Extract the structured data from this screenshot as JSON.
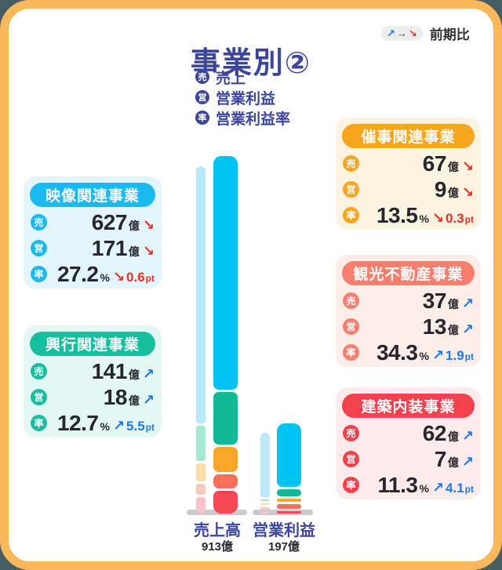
{
  "page": {
    "title": "事業別②",
    "outside_color": "#445e63",
    "border_color": "#fbb75a"
  },
  "prev_legend": {
    "arrows": [
      {
        "glyph": "↗",
        "meaning": "increase",
        "color": "#1e78e8"
      },
      {
        "glyph": "→",
        "meaning": "flat",
        "color": "#3a3a46"
      },
      {
        "glyph": "↘",
        "meaning": "decrease",
        "color": "#ee2e24"
      }
    ],
    "label": "前期比"
  },
  "metric_legend": {
    "badge_color": "#3b459b",
    "items": [
      {
        "badge": "売",
        "label": "売上"
      },
      {
        "badge": "営",
        "label": "営業利益"
      },
      {
        "badge": "率",
        "label": "営業利益率"
      }
    ]
  },
  "icons": {
    "trend_up": "↗",
    "trend_down": "↘"
  },
  "trend_colors": {
    "up": "#1e78e8",
    "down": "#ee2e24"
  },
  "cards": [
    {
      "title": "映像関連事業",
      "accent": "#1ab9f0",
      "bg": "#e4f6fd",
      "rows": [
        {
          "badge": "売",
          "value": "627",
          "unit": "億",
          "trend": "down"
        },
        {
          "badge": "営",
          "value": "171",
          "unit": "億",
          "trend": "down"
        },
        {
          "badge": "率",
          "value": "27.2",
          "unit": "%",
          "trend": "down",
          "delta": "0.6",
          "delta_unit": "pt"
        }
      ]
    },
    {
      "title": "興行関連事業",
      "accent": "#17bf9e",
      "bg": "#e3f8f2",
      "rows": [
        {
          "badge": "売",
          "value": "141",
          "unit": "億",
          "trend": "up"
        },
        {
          "badge": "営",
          "value": "18",
          "unit": "億",
          "trend": "up"
        },
        {
          "badge": "率",
          "value": "12.7",
          "unit": "%",
          "trend": "up",
          "delta": "5.5",
          "delta_unit": "pt"
        }
      ]
    },
    {
      "title": "催事関連事業",
      "accent": "#f8a51f",
      "bg": "#fdf3e1",
      "rows": [
        {
          "badge": "売",
          "value": "67",
          "unit": "億",
          "trend": "down"
        },
        {
          "badge": "営",
          "value": "9",
          "unit": "億",
          "trend": "down"
        },
        {
          "badge": "率",
          "value": "13.5",
          "unit": "%",
          "trend": "down",
          "delta": "0.3",
          "delta_unit": "pt"
        }
      ]
    },
    {
      "title": "観光不動産事業",
      "accent": "#f87f6e",
      "bg": "#fdeeea",
      "rows": [
        {
          "badge": "売",
          "value": "37",
          "unit": "億",
          "trend": "up"
        },
        {
          "badge": "営",
          "value": "13",
          "unit": "億",
          "trend": "up"
        },
        {
          "badge": "率",
          "value": "34.3",
          "unit": "%",
          "trend": "up",
          "delta": "1.9",
          "delta_unit": "pt"
        }
      ]
    },
    {
      "title": "建築内装事業",
      "accent": "#f4414e",
      "bg": "#fdeceb",
      "rows": [
        {
          "badge": "売",
          "value": "62",
          "unit": "億",
          "trend": "up"
        },
        {
          "badge": "営",
          "value": "7",
          "unit": "億",
          "trend": "up"
        },
        {
          "badge": "率",
          "value": "11.3",
          "unit": "%",
          "trend": "up",
          "delta": "4.1",
          "delta_unit": "pt"
        }
      ]
    }
  ],
  "chart_data": {
    "type": "bar",
    "subtype": "grouped-stacked",
    "unit": "億円",
    "legend": "thin bar = previous period, wide bar = current period",
    "categories": [
      "映像関連事業",
      "興行関連事業",
      "催事関連事業",
      "観光不動産事業",
      "建築内装事業"
    ],
    "colors_current": [
      "#00c3f4",
      "#10b895",
      "#f9a62a",
      "#f8705a",
      "#f94853"
    ],
    "colors_prev": [
      "#b9e9fb",
      "#a8e7d2",
      "#fddfab",
      "#fbc9c0",
      "#fbc6ca"
    ],
    "groups": [
      {
        "key": "sales",
        "label": "売上高",
        "total_label": "913億",
        "series": [
          {
            "name": "前期",
            "style": "prev",
            "estimated": true,
            "values": [
              690,
              95,
              48,
              30,
              45
            ]
          },
          {
            "name": "当期",
            "style": "current",
            "values": [
              627,
              141,
              67,
              37,
              62
            ]
          }
        ]
      },
      {
        "key": "profit",
        "label": "営業利益",
        "total_label": "197億",
        "series": [
          {
            "name": "前期",
            "style": "prev",
            "estimated": true,
            "values": [
              172,
              5,
              4,
              6,
              4
            ]
          },
          {
            "name": "当期",
            "style": "current",
            "values": [
              171,
              18,
              9,
              13,
              7
            ]
          }
        ]
      }
    ]
  }
}
